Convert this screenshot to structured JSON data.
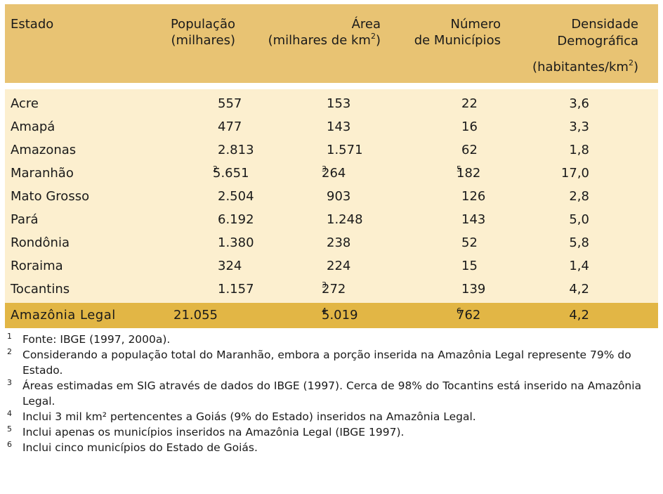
{
  "headers": {
    "estado": "Estado",
    "populacao_1": "População",
    "populacao_2": "(milhares)",
    "area_1": "Área",
    "area_2": "(milhares de km",
    "area_2_sup": "2",
    "area_2_end": ")",
    "numero_1": "Número",
    "numero_2": "de Municípios",
    "densidade_1": "Densidade",
    "densidade_2": "Demográfica",
    "densidade_3": "(habitantes/km",
    "densidade_3_sup": "2",
    "densidade_3_end": ")"
  },
  "rows": [
    {
      "estado": "Acre",
      "populacao": "557",
      "populacao_sup": "",
      "area": "153",
      "area_sup": "",
      "municipios": "22",
      "municipios_sup": "",
      "densidade": "3,6"
    },
    {
      "estado": "Amapá",
      "populacao": "477",
      "populacao_sup": "",
      "area": "143",
      "area_sup": "",
      "municipios": "16",
      "municipios_sup": "",
      "densidade": "3,3"
    },
    {
      "estado": "Amazonas",
      "populacao": "2.813",
      "populacao_sup": "",
      "area": "1.571",
      "area_sup": "",
      "municipios": "62",
      "municipios_sup": "",
      "densidade": "1,8"
    },
    {
      "estado": "Maranhão",
      "populacao": "5.651",
      "populacao_sup": "2",
      "area": "264",
      "area_sup": "3",
      "municipios": "182",
      "municipios_sup": "5",
      "densidade": "17,0"
    },
    {
      "estado": "Mato Grosso",
      "populacao": "2.504",
      "populacao_sup": "",
      "area": "903",
      "area_sup": "",
      "municipios": "126",
      "municipios_sup": "",
      "densidade": "2,8"
    },
    {
      "estado": "Pará",
      "populacao": "6.192",
      "populacao_sup": "",
      "area": "1.248",
      "area_sup": "",
      "municipios": "143",
      "municipios_sup": "",
      "densidade": "5,0"
    },
    {
      "estado": "Rondônia",
      "populacao": "1.380",
      "populacao_sup": "",
      "area": "238",
      "area_sup": "",
      "municipios": "52",
      "municipios_sup": "",
      "densidade": "5,8"
    },
    {
      "estado": "Roraima",
      "populacao": "324",
      "populacao_sup": "",
      "area": "224",
      "area_sup": "",
      "municipios": "15",
      "municipios_sup": "",
      "densidade": "1,4"
    },
    {
      "estado": "Tocantins",
      "populacao": "1.157",
      "populacao_sup": "",
      "area": "272",
      "area_sup": "3",
      "municipios": "139",
      "municipios_sup": "",
      "densidade": "4,2"
    }
  ],
  "total": {
    "estado": "Amazônia Legal",
    "populacao": "21.055",
    "area": "5.019",
    "area_sup": "4",
    "municipios": "762",
    "municipios_sup": "6",
    "densidade": "4,2"
  },
  "notes": [
    {
      "mark": "1",
      "text": "Fonte: IBGE (1997, 2000a)."
    },
    {
      "mark": "2",
      "text": "Considerando a população total do Maranhão, embora a porção inserida na Amazônia Legal represente 79% do Estado."
    },
    {
      "mark": "3",
      "text": "Áreas estimadas em SIG através de dados do IBGE (1997). Cerca de 98% do Tocantins está inserido na Amazônia Legal."
    },
    {
      "mark": "4",
      "text": "Inclui 3 mil km² pertencentes a Goiás (9% do Estado) inseridos na Amazônia Legal."
    },
    {
      "mark": "5",
      "text": "Inclui apenas os municípios inseridos na Amazônia Legal (IBGE 1997)."
    },
    {
      "mark": "6",
      "text": "Inclui cinco municípios do Estado de Goiás."
    }
  ],
  "colors": {
    "header_bg": "#e8c373",
    "body_bg": "#fcefcf",
    "total_bg": "#e2b645"
  }
}
